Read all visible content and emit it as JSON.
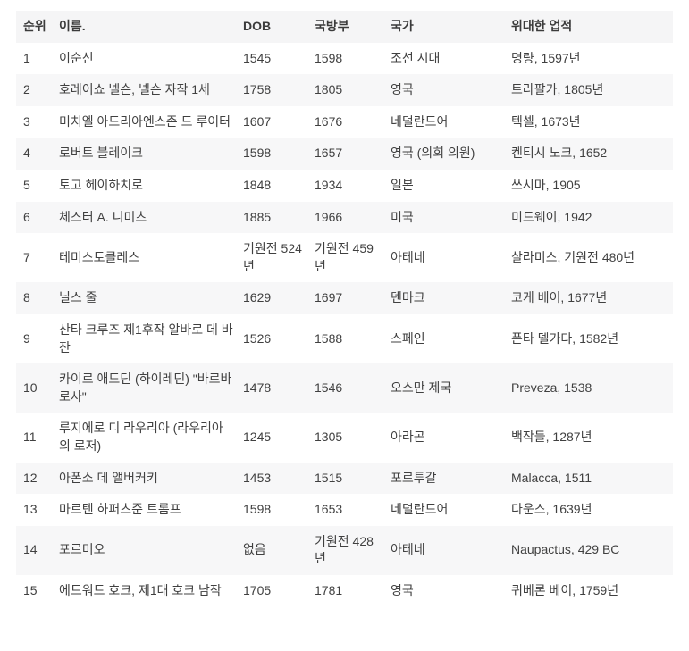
{
  "chart_data": {
    "type": "table",
    "columns": [
      "순위",
      "이름.",
      "DOB",
      "국방부",
      "국가",
      "위대한 업적"
    ],
    "rows": [
      [
        "1",
        "이순신",
        "1545",
        "1598",
        "조선 시대",
        "명량, 1597년"
      ],
      [
        "2",
        "호레이쇼 넬슨, 넬슨 자작 1세",
        "1758",
        "1805",
        "영국",
        "트라팔가, 1805년"
      ],
      [
        "3",
        "미치엘 아드리아엔스존 드 루이터",
        "1607",
        "1676",
        "네덜란드어",
        "텍셀, 1673년"
      ],
      [
        "4",
        "로버트 블레이크",
        "1598",
        "1657",
        "영국 (의회 의원)",
        "켄티시 노크, 1652"
      ],
      [
        "5",
        "토고 헤이하치로",
        "1848",
        "1934",
        "일본",
        "쓰시마, 1905"
      ],
      [
        "6",
        "체스터 A. 니미츠",
        "1885",
        "1966",
        "미국",
        "미드웨이, 1942"
      ],
      [
        "7",
        "테미스토클레스",
        "기원전 524년",
        "기원전 459년",
        "아테네",
        "살라미스, 기원전 480년"
      ],
      [
        "8",
        "닐스 줄",
        "1629",
        "1697",
        "덴마크",
        "코게 베이, 1677년"
      ],
      [
        "9",
        "산타 크루즈 제1후작 알바로 데 바잔",
        "1526",
        "1588",
        "스페인",
        "폰타 델가다, 1582년"
      ],
      [
        "10",
        "카이르 애드딘 (하이레딘) \"바르바로사\"",
        "1478",
        "1546",
        "오스만 제국",
        "Preveza, 1538"
      ],
      [
        "11",
        "루지에로 디 라우리아 (라우리아의 로저)",
        "1245",
        "1305",
        "아라곤",
        "백작들, 1287년"
      ],
      [
        "12",
        "아폰소 데 앨버커키",
        "1453",
        "1515",
        "포르투갈",
        "Malacca, 1511"
      ],
      [
        "13",
        "마르텐 하퍼츠준 트롬프",
        "1598",
        "1653",
        "네덜란드어",
        "다운스, 1639년"
      ],
      [
        "14",
        "포르미오",
        "없음",
        "기원전 428년",
        "아테네",
        "Naupactus, 429 BC"
      ],
      [
        "15",
        "에드워드 호크, 제1대 호크 남작",
        "1705",
        "1781",
        "영국",
        "퀴베론 베이, 1759년"
      ]
    ],
    "title": "",
    "layout": {
      "stripes": true,
      "grid": "off",
      "legend": "none"
    },
    "colors": {
      "header_bg": "#f5f5f6",
      "stripe_bg": "#f7f7f8",
      "text": "#404040",
      "header_text": "#3b3b3b",
      "page_bg": "#ffffff"
    }
  }
}
